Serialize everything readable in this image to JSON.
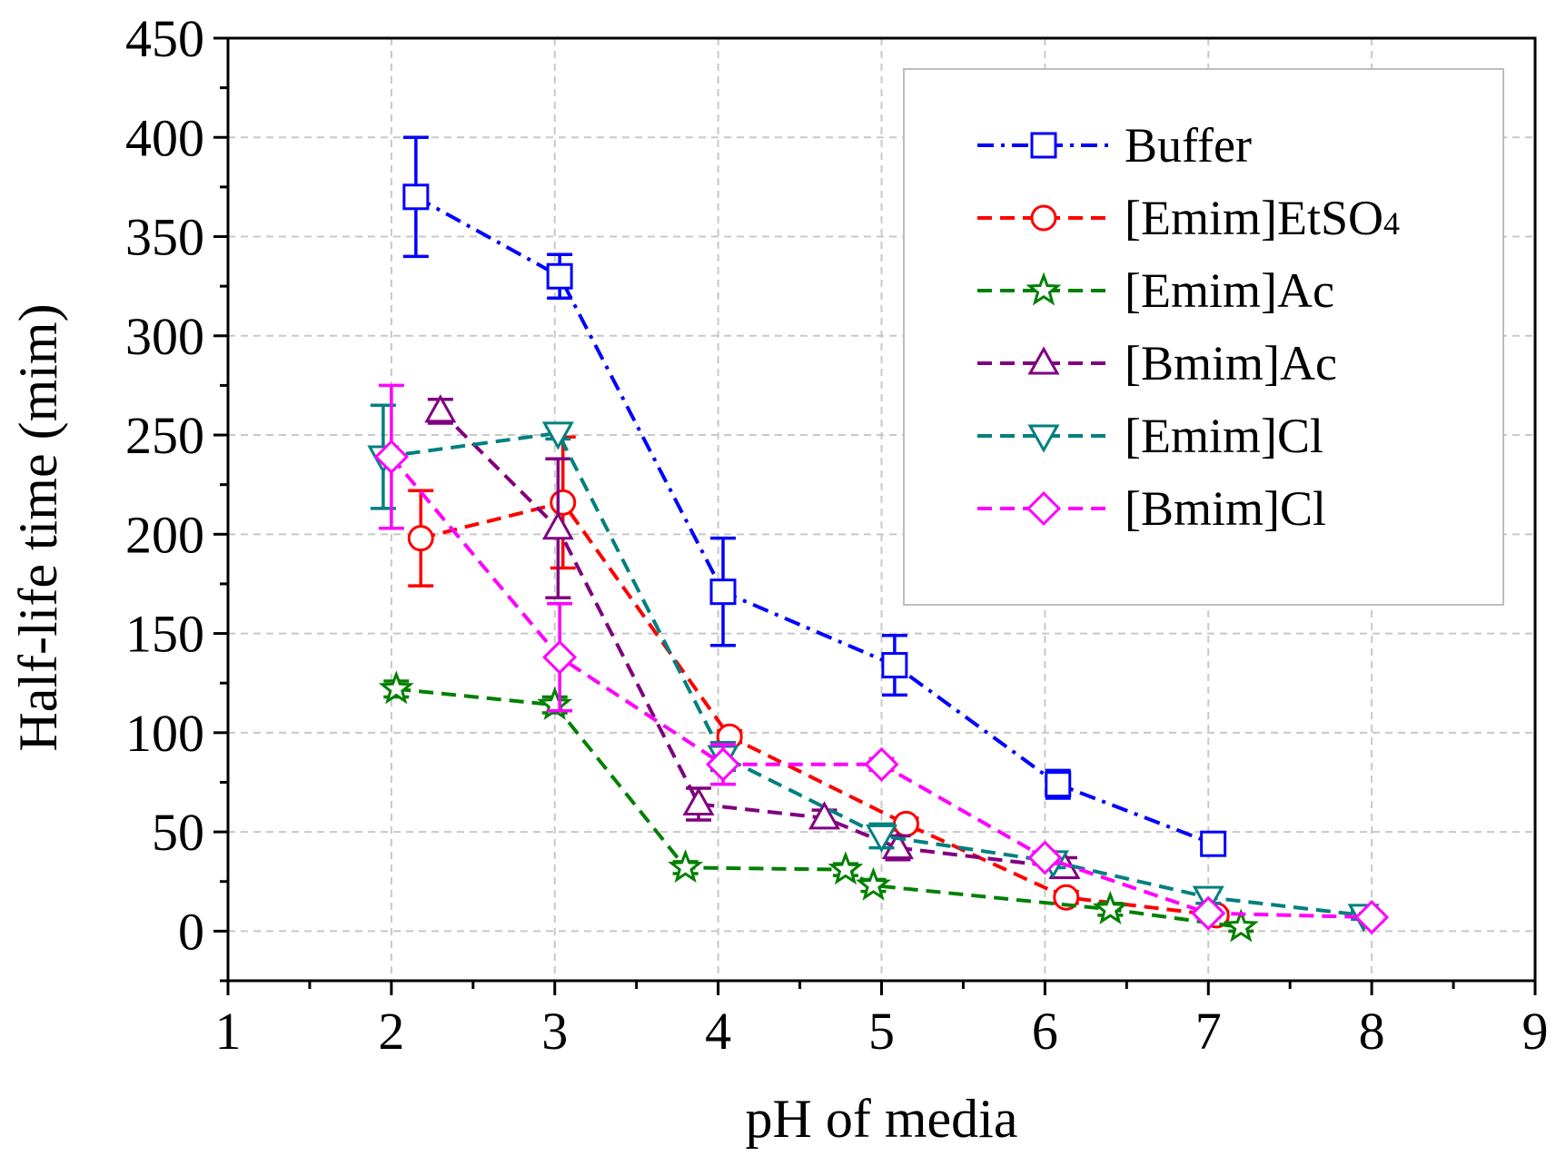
{
  "chart_data": {
    "type": "line",
    "title": "",
    "xlabel": "pH of media",
    "ylabel": "Half-life time (mim)",
    "xlim": [
      1,
      9
    ],
    "ylim": [
      -25,
      450
    ],
    "xticks": [
      "1",
      "2",
      "3",
      "4",
      "5",
      "6",
      "7",
      "8",
      "9"
    ],
    "yticks": [
      "0",
      "50",
      "100",
      "150",
      "200",
      "250",
      "300",
      "350",
      "400",
      "450"
    ],
    "grid": true,
    "legend_position": "top-right",
    "series": [
      {
        "name": "Buffer",
        "label_main": "Buffer",
        "label_sub": "",
        "color": "#0000ff",
        "marker": "square",
        "dash": "dash-dot",
        "points": [
          {
            "x": 2.15,
            "y": 370,
            "err": 30
          },
          {
            "x": 3.03,
            "y": 330,
            "err": 11
          },
          {
            "x": 4.03,
            "y": 171,
            "err": 27
          },
          {
            "x": 5.08,
            "y": 134,
            "err": 15
          },
          {
            "x": 6.08,
            "y": 74,
            "err": 7
          },
          {
            "x": 7.03,
            "y": 44,
            "err": 5
          }
        ]
      },
      {
        "name": "[Emim]EtSO4",
        "label_main": "[Emim]EtSO",
        "label_sub": "4",
        "color": "#ff0000",
        "marker": "circle",
        "dash": "dash",
        "points": [
          {
            "x": 2.18,
            "y": 198,
            "err": 24
          },
          {
            "x": 3.05,
            "y": 216,
            "err": 33
          },
          {
            "x": 4.07,
            "y": 98,
            "err": 3
          },
          {
            "x": 5.15,
            "y": 54,
            "err": 3
          },
          {
            "x": 6.13,
            "y": 17,
            "err": 3
          },
          {
            "x": 7.05,
            "y": 8,
            "err": 2
          }
        ]
      },
      {
        "name": "[Emim]Ac",
        "label_main": "[Emim]Ac",
        "label_sub": "",
        "color": "#008000",
        "marker": "star",
        "dash": "dash",
        "points": [
          {
            "x": 2.03,
            "y": 122,
            "err": 4
          },
          {
            "x": 3.0,
            "y": 114,
            "err": 4
          },
          {
            "x": 3.8,
            "y": 32,
            "err": 3
          },
          {
            "x": 4.78,
            "y": 31,
            "err": 3
          },
          {
            "x": 4.95,
            "y": 23,
            "err": 3
          },
          {
            "x": 6.4,
            "y": 11,
            "err": 3
          },
          {
            "x": 7.2,
            "y": 2,
            "err": 2
          }
        ]
      },
      {
        "name": "[Bmim]Ac",
        "label_main": "[Bmim]Ac",
        "label_sub": "",
        "color": "#800080",
        "marker": "triangle-up",
        "dash": "dash",
        "points": [
          {
            "x": 2.3,
            "y": 262,
            "err": 6
          },
          {
            "x": 3.02,
            "y": 203,
            "err": 35
          },
          {
            "x": 3.88,
            "y": 64,
            "err": 8
          },
          {
            "x": 4.65,
            "y": 57,
            "err": 4
          },
          {
            "x": 5.1,
            "y": 42,
            "err": 6
          },
          {
            "x": 6.12,
            "y": 32,
            "err": 5
          }
        ]
      },
      {
        "name": "[Emim]Cl",
        "label_main": "[Emim]Cl",
        "label_sub": "",
        "color": "#008080",
        "marker": "triangle-down",
        "dash": "dash",
        "points": [
          {
            "x": 1.95,
            "y": 239,
            "err": 26
          },
          {
            "x": 3.02,
            "y": 251,
            "err": 3
          },
          {
            "x": 4.03,
            "y": 88,
            "err": 7
          },
          {
            "x": 5.0,
            "y": 48,
            "err": 6
          },
          {
            "x": 6.05,
            "y": 35,
            "err": 3
          },
          {
            "x": 7.0,
            "y": 17,
            "err": 3
          },
          {
            "x": 7.95,
            "y": 8,
            "err": 2
          }
        ]
      },
      {
        "name": "[Bmim]Cl",
        "label_main": "[Bmim]Cl",
        "label_sub": "",
        "color": "#ff00ff",
        "marker": "diamond",
        "dash": "dash",
        "points": [
          {
            "x": 2.0,
            "y": 239,
            "err": 36
          },
          {
            "x": 3.03,
            "y": 138,
            "err": 27
          },
          {
            "x": 4.03,
            "y": 84,
            "err": 10
          },
          {
            "x": 5.0,
            "y": 84,
            "err": 3
          },
          {
            "x": 6.0,
            "y": 37,
            "err": 3
          },
          {
            "x": 7.0,
            "y": 9,
            "err": 2
          },
          {
            "x": 8.0,
            "y": 7,
            "err": 2
          }
        ]
      }
    ]
  }
}
